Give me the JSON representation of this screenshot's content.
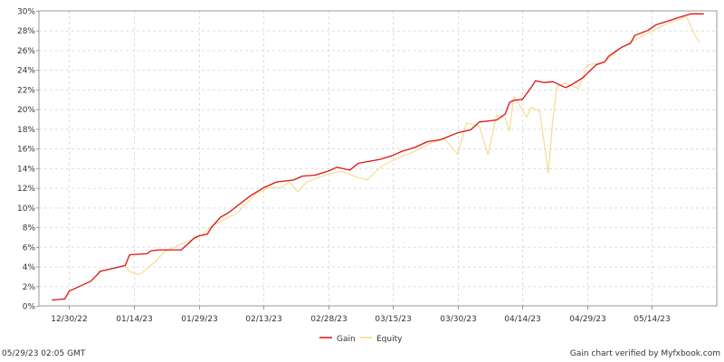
{
  "chart_data": {
    "type": "line",
    "ylim": [
      0,
      30
    ],
    "y_ticks": [
      0,
      2,
      4,
      6,
      8,
      10,
      12,
      14,
      16,
      18,
      20,
      22,
      24,
      26,
      28,
      30
    ],
    "y_tick_labels": [
      "0%",
      "2%",
      "4%",
      "6%",
      "8%",
      "10%",
      "12%",
      "14%",
      "16%",
      "18%",
      "20%",
      "22%",
      "24%",
      "26%",
      "28%",
      "30%"
    ],
    "xlim": [
      "2022-12-23",
      "2023-05-29"
    ],
    "x_ticks": [
      "2022-12-30",
      "2023-01-14",
      "2023-01-29",
      "2023-02-13",
      "2023-02-28",
      "2023-03-15",
      "2023-03-30",
      "2023-04-14",
      "2023-04-29",
      "2023-05-14"
    ],
    "x_tick_labels": [
      "12/30/22",
      "01/14/23",
      "01/29/23",
      "02/13/23",
      "02/28/23",
      "03/15/23",
      "03/30/23",
      "04/14/23",
      "04/29/23",
      "05/14/23"
    ],
    "grid": true,
    "legend_position": "bottom-center",
    "colors": {
      "gain": "#dd1111",
      "equity": "#f6d98a",
      "grid": "#dddddd",
      "axis": "#999999"
    },
    "series": [
      {
        "name": "Gain",
        "color": "#dd1111",
        "x": [
          "2022-12-26",
          "2022-12-29",
          "2022-12-30",
          "2023-01-04",
          "2023-01-06",
          "2023-01-06",
          "2023-01-12",
          "2023-01-13",
          "2023-01-17",
          "2023-01-18",
          "2023-01-20",
          "2023-01-25",
          "2023-01-28",
          "2023-01-29",
          "2023-01-31",
          "2023-02-01",
          "2023-02-03",
          "2023-02-05",
          "2023-02-07",
          "2023-02-10",
          "2023-02-13",
          "2023-02-16",
          "2023-02-20",
          "2023-02-22",
          "2023-02-25",
          "2023-02-28",
          "2023-03-02",
          "2023-03-05",
          "2023-03-07",
          "2023-03-12",
          "2023-03-15",
          "2023-03-17",
          "2023-03-20",
          "2023-03-23",
          "2023-03-26",
          "2023-03-30",
          "2023-04-02",
          "2023-04-04",
          "2023-04-08",
          "2023-04-10",
          "2023-04-11",
          "2023-04-12",
          "2023-04-14",
          "2023-04-16",
          "2023-04-17",
          "2023-04-19",
          "2023-04-21",
          "2023-04-24",
          "2023-04-25",
          "2023-04-28",
          "2023-05-01",
          "2023-05-03",
          "2023-05-04",
          "2023-05-07",
          "2023-05-09",
          "2023-05-10",
          "2023-05-13",
          "2023-05-15",
          "2023-05-18",
          "2023-05-20",
          "2023-05-23",
          "2023-05-26"
        ],
        "y": [
          0.6,
          0.7,
          1.5,
          2.5,
          3.4,
          3.5,
          4.1,
          5.2,
          5.3,
          5.6,
          5.7,
          5.7,
          6.9,
          7.1,
          7.3,
          8.0,
          9.0,
          9.5,
          10.2,
          11.2,
          12.0,
          12.6,
          12.8,
          13.2,
          13.3,
          13.7,
          14.1,
          13.8,
          14.5,
          14.9,
          15.3,
          15.7,
          16.1,
          16.7,
          16.9,
          17.6,
          17.9,
          18.7,
          18.9,
          19.5,
          20.7,
          20.9,
          21.0,
          22.2,
          22.9,
          22.7,
          22.8,
          22.2,
          22.4,
          23.2,
          24.5,
          24.8,
          25.4,
          26.3,
          26.7,
          27.5,
          28.0,
          28.6,
          29.0,
          29.3,
          29.7,
          29.7
        ]
      },
      {
        "name": "Equity",
        "color": "#f6d98a",
        "x": [
          "2023-01-12",
          "2023-01-13",
          "2023-01-15",
          "2023-01-16",
          "2023-01-17",
          "2023-01-19",
          "2023-01-21",
          "2023-01-26",
          "2023-01-29",
          "2023-01-30",
          "2023-02-01",
          "2023-02-04",
          "2023-02-07",
          "2023-02-11",
          "2023-02-14",
          "2023-02-17",
          "2023-02-19",
          "2023-02-21",
          "2023-02-23",
          "2023-02-26",
          "2023-02-28",
          "2023-03-03",
          "2023-03-06",
          "2023-03-09",
          "2023-03-12",
          "2023-03-15",
          "2023-03-17",
          "2023-03-20",
          "2023-03-24",
          "2023-03-27",
          "2023-03-30",
          "2023-04-01",
          "2023-04-04",
          "2023-04-06",
          "2023-04-08",
          "2023-04-10",
          "2023-04-11",
          "2023-04-12",
          "2023-04-15",
          "2023-04-16",
          "2023-04-17",
          "2023-04-18",
          "2023-04-20",
          "2023-04-21",
          "2023-04-22",
          "2023-04-24",
          "2023-04-27",
          "2023-04-29",
          "2023-05-03",
          "2023-05-07",
          "2023-05-12",
          "2023-05-17",
          "2023-05-22",
          "2023-05-24",
          "2023-05-25"
        ],
        "y": [
          4.0,
          3.5,
          3.2,
          3.4,
          3.8,
          4.5,
          5.5,
          6.5,
          7.0,
          7.3,
          8.1,
          8.8,
          9.5,
          11.3,
          12.0,
          12.0,
          12.6,
          11.6,
          12.6,
          13.1,
          13.4,
          13.7,
          13.2,
          12.8,
          14.1,
          14.8,
          15.2,
          15.7,
          16.6,
          17.0,
          15.4,
          18.6,
          18.3,
          15.4,
          19.4,
          19.1,
          17.8,
          21.3,
          19.2,
          20.2,
          20.0,
          19.8,
          13.5,
          18.8,
          22.3,
          22.6,
          22.1,
          24.5,
          24.8,
          26.3,
          27.5,
          28.6,
          29.4,
          27.5,
          26.8
        ]
      }
    ]
  },
  "footer": {
    "timestamp": "05/29/23 02:05 GMT",
    "credit": "Gain chart verified by Myfxbook.com"
  }
}
